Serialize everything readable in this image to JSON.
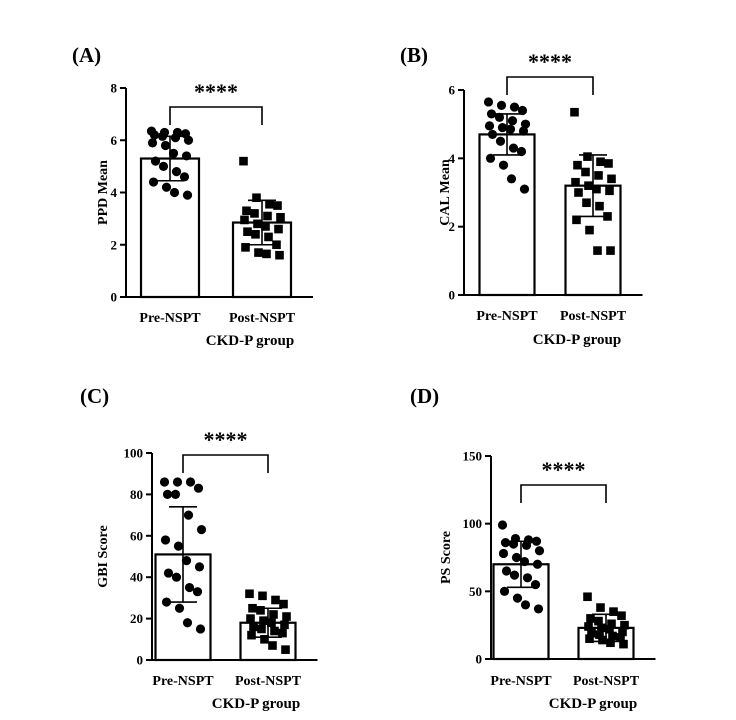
{
  "chart_data": [
    {
      "type": "bar",
      "panel_label": "(A)",
      "categories": [
        "Pre-NSPT",
        "Post-NSPT"
      ],
      "xlabel": "CKD-P group",
      "ylabel": "PPD Mean",
      "ylim": [
        0,
        8
      ],
      "yticks": [
        0,
        2,
        4,
        6,
        8
      ],
      "significance": "****",
      "series": [
        {
          "marker": "circle",
          "mean": 5.3,
          "sd": 0.85,
          "points": [
            6.35,
            6.3,
            6.3,
            6.25,
            6.2,
            6.15,
            6.1,
            6.0,
            5.9,
            5.8,
            5.5,
            5.4,
            5.2,
            5.0,
            4.8,
            4.6,
            4.4,
            4.2,
            4.0,
            3.9
          ]
        },
        {
          "marker": "square",
          "mean": 2.85,
          "sd": 0.85,
          "points": [
            5.2,
            3.8,
            3.55,
            3.5,
            3.3,
            3.2,
            3.1,
            3.05,
            2.95,
            2.8,
            2.7,
            2.6,
            2.5,
            2.4,
            2.3,
            2.0,
            1.9,
            1.7,
            1.65,
            1.6
          ]
        }
      ]
    },
    {
      "type": "bar",
      "panel_label": "(B)",
      "categories": [
        "Pre-NSPT",
        "Post-NSPT"
      ],
      "xlabel": "CKD-P group",
      "ylabel": "CAL Mean",
      "ylim": [
        0,
        6
      ],
      "yticks": [
        0,
        2,
        4,
        6
      ],
      "significance": "****",
      "series": [
        {
          "marker": "circle",
          "mean": 4.7,
          "sd": 0.6,
          "points": [
            5.65,
            5.55,
            5.5,
            5.4,
            5.3,
            5.2,
            5.1,
            5.0,
            4.95,
            4.9,
            4.85,
            4.8,
            4.7,
            4.5,
            4.3,
            4.2,
            4.0,
            3.8,
            3.4,
            3.1
          ]
        },
        {
          "marker": "square",
          "mean": 3.2,
          "sd": 0.9,
          "points": [
            5.35,
            4.05,
            3.9,
            3.85,
            3.8,
            3.6,
            3.5,
            3.4,
            3.3,
            3.2,
            3.1,
            3.05,
            3.0,
            2.7,
            2.6,
            2.3,
            2.2,
            1.9,
            1.3,
            1.3
          ]
        }
      ]
    },
    {
      "type": "bar",
      "panel_label": "(C)",
      "categories": [
        "Pre-NSPT",
        "Post-NSPT"
      ],
      "xlabel": "CKD-P group",
      "ylabel": "GBI Score",
      "ylim": [
        0,
        100
      ],
      "yticks": [
        0,
        20,
        40,
        60,
        80,
        100
      ],
      "significance": "****",
      "series": [
        {
          "marker": "circle",
          "mean": 51,
          "sd": 23,
          "points": [
            86,
            86,
            86,
            83,
            80,
            80,
            70,
            63,
            58,
            55,
            48,
            45,
            42,
            40,
            35,
            33,
            28,
            25,
            18,
            15
          ]
        },
        {
          "marker": "square",
          "mean": 18,
          "sd": 7,
          "points": [
            32,
            31,
            29,
            27,
            25,
            24,
            22,
            21,
            20,
            19,
            18,
            17,
            16,
            15,
            14,
            13,
            12,
            10,
            7,
            5
          ]
        }
      ]
    },
    {
      "type": "bar",
      "panel_label": "(D)",
      "categories": [
        "Pre-NSPT",
        "Post-NSPT"
      ],
      "xlabel": "CKD-P group",
      "ylabel": "PS Score",
      "ylim": [
        0,
        150
      ],
      "yticks": [
        0,
        50,
        100,
        150
      ],
      "significance": "****",
      "series": [
        {
          "marker": "circle",
          "mean": 70,
          "sd": 17,
          "points": [
            99,
            89,
            88,
            87,
            86,
            85,
            84,
            80,
            78,
            75,
            72,
            70,
            65,
            62,
            60,
            55,
            50,
            45,
            40,
            37
          ]
        },
        {
          "marker": "square",
          "mean": 23,
          "sd": 10,
          "points": [
            46,
            38,
            35,
            32,
            30,
            28,
            26,
            25,
            24,
            23,
            22,
            20,
            19,
            18,
            17,
            16,
            15,
            14,
            12,
            11
          ]
        }
      ]
    }
  ]
}
